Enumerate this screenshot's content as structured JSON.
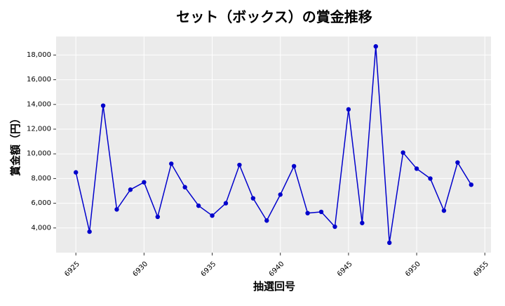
{
  "chart_data": {
    "type": "line",
    "title": "セット（ボックス）の賞金推移",
    "xlabel": "抽選回号",
    "ylabel": "賞金額（円）",
    "xlim": [
      6923.55,
      6955.45
    ],
    "ylim": [
      2000,
      19500
    ],
    "x_ticks": [
      6925,
      6930,
      6935,
      6940,
      6945,
      6950,
      6955
    ],
    "y_ticks": [
      4000,
      6000,
      8000,
      10000,
      12000,
      14000,
      16000,
      18000
    ],
    "y_tick_labels": [
      "4,000",
      "6,000",
      "8,000",
      "10,000",
      "12,000",
      "14,000",
      "16,000",
      "18,000"
    ],
    "grid": true,
    "series": [
      {
        "color": "#0000cc",
        "x": [
          6925,
          6926,
          6927,
          6928,
          6929,
          6930,
          6931,
          6932,
          6933,
          6934,
          6935,
          6936,
          6937,
          6938,
          6939,
          6940,
          6941,
          6942,
          6943,
          6944,
          6945,
          6946,
          6947,
          6948,
          6949,
          6950,
          6951,
          6952,
          6953,
          6954
        ],
        "y": [
          8500,
          3700,
          13900,
          5500,
          7100,
          7700,
          4900,
          9200,
          7300,
          5800,
          5000,
          6000,
          9100,
          6400,
          4600,
          6700,
          9000,
          5200,
          5300,
          4100,
          13600,
          4400,
          18700,
          2800,
          10100,
          8800,
          8000,
          5400,
          9300,
          7500
        ]
      }
    ]
  }
}
